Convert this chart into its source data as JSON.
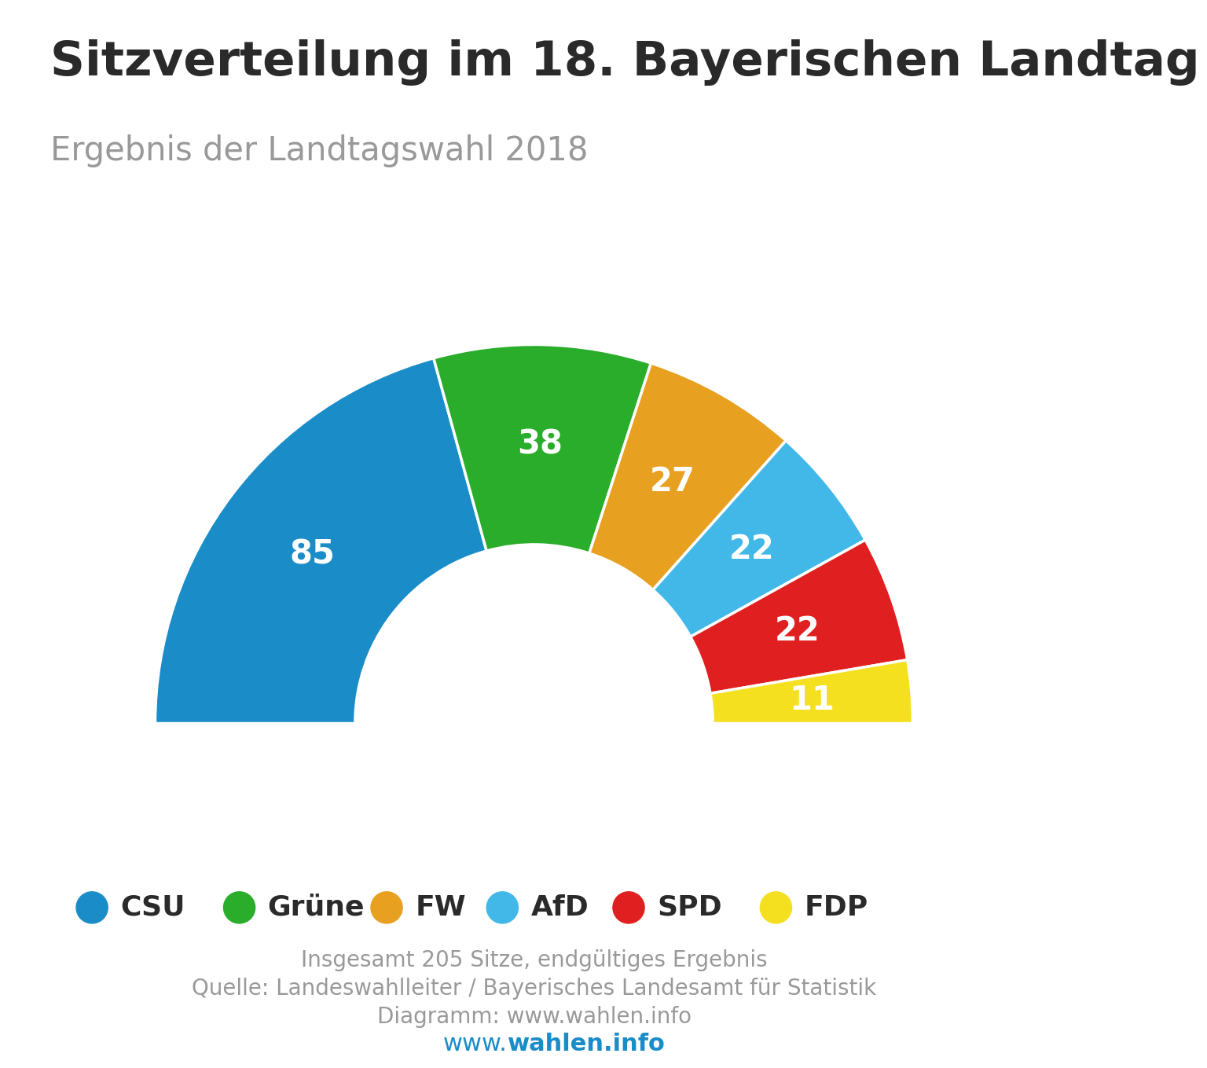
{
  "title": "Sitzverteilung im 18. Bayerischen Landtag",
  "subtitle": "Ergebnis der Landtagswahl 2018",
  "parties": [
    "CSU",
    "Grüne",
    "FW",
    "AfD",
    "SPD",
    "FDP"
  ],
  "seats": [
    85,
    38,
    27,
    22,
    22,
    11
  ],
  "colors": [
    "#1a8dc8",
    "#2aad2a",
    "#e8a020",
    "#42b8e8",
    "#e02020",
    "#f5e020"
  ],
  "total": 205,
  "note1": "Insgesamt 205 Sitze, endgültiges Ergebnis",
  "note2": "Quelle: Landeswahlleiter / Bayerisches Landesamt für Statistik",
  "note3": "Diagramm: www.wahlen.info",
  "footer_www": "www.",
  "footer_bold": "wahlen.info",
  "background_color": "#ffffff",
  "text_color_dark": "#2a2a2a",
  "text_color_gray": "#999999",
  "label_color": "#ffffff",
  "label_fontsize": 30,
  "title_fontsize": 44,
  "subtitle_fontsize": 30,
  "legend_fontsize": 26,
  "note_fontsize": 20,
  "footer_fontsize": 22
}
